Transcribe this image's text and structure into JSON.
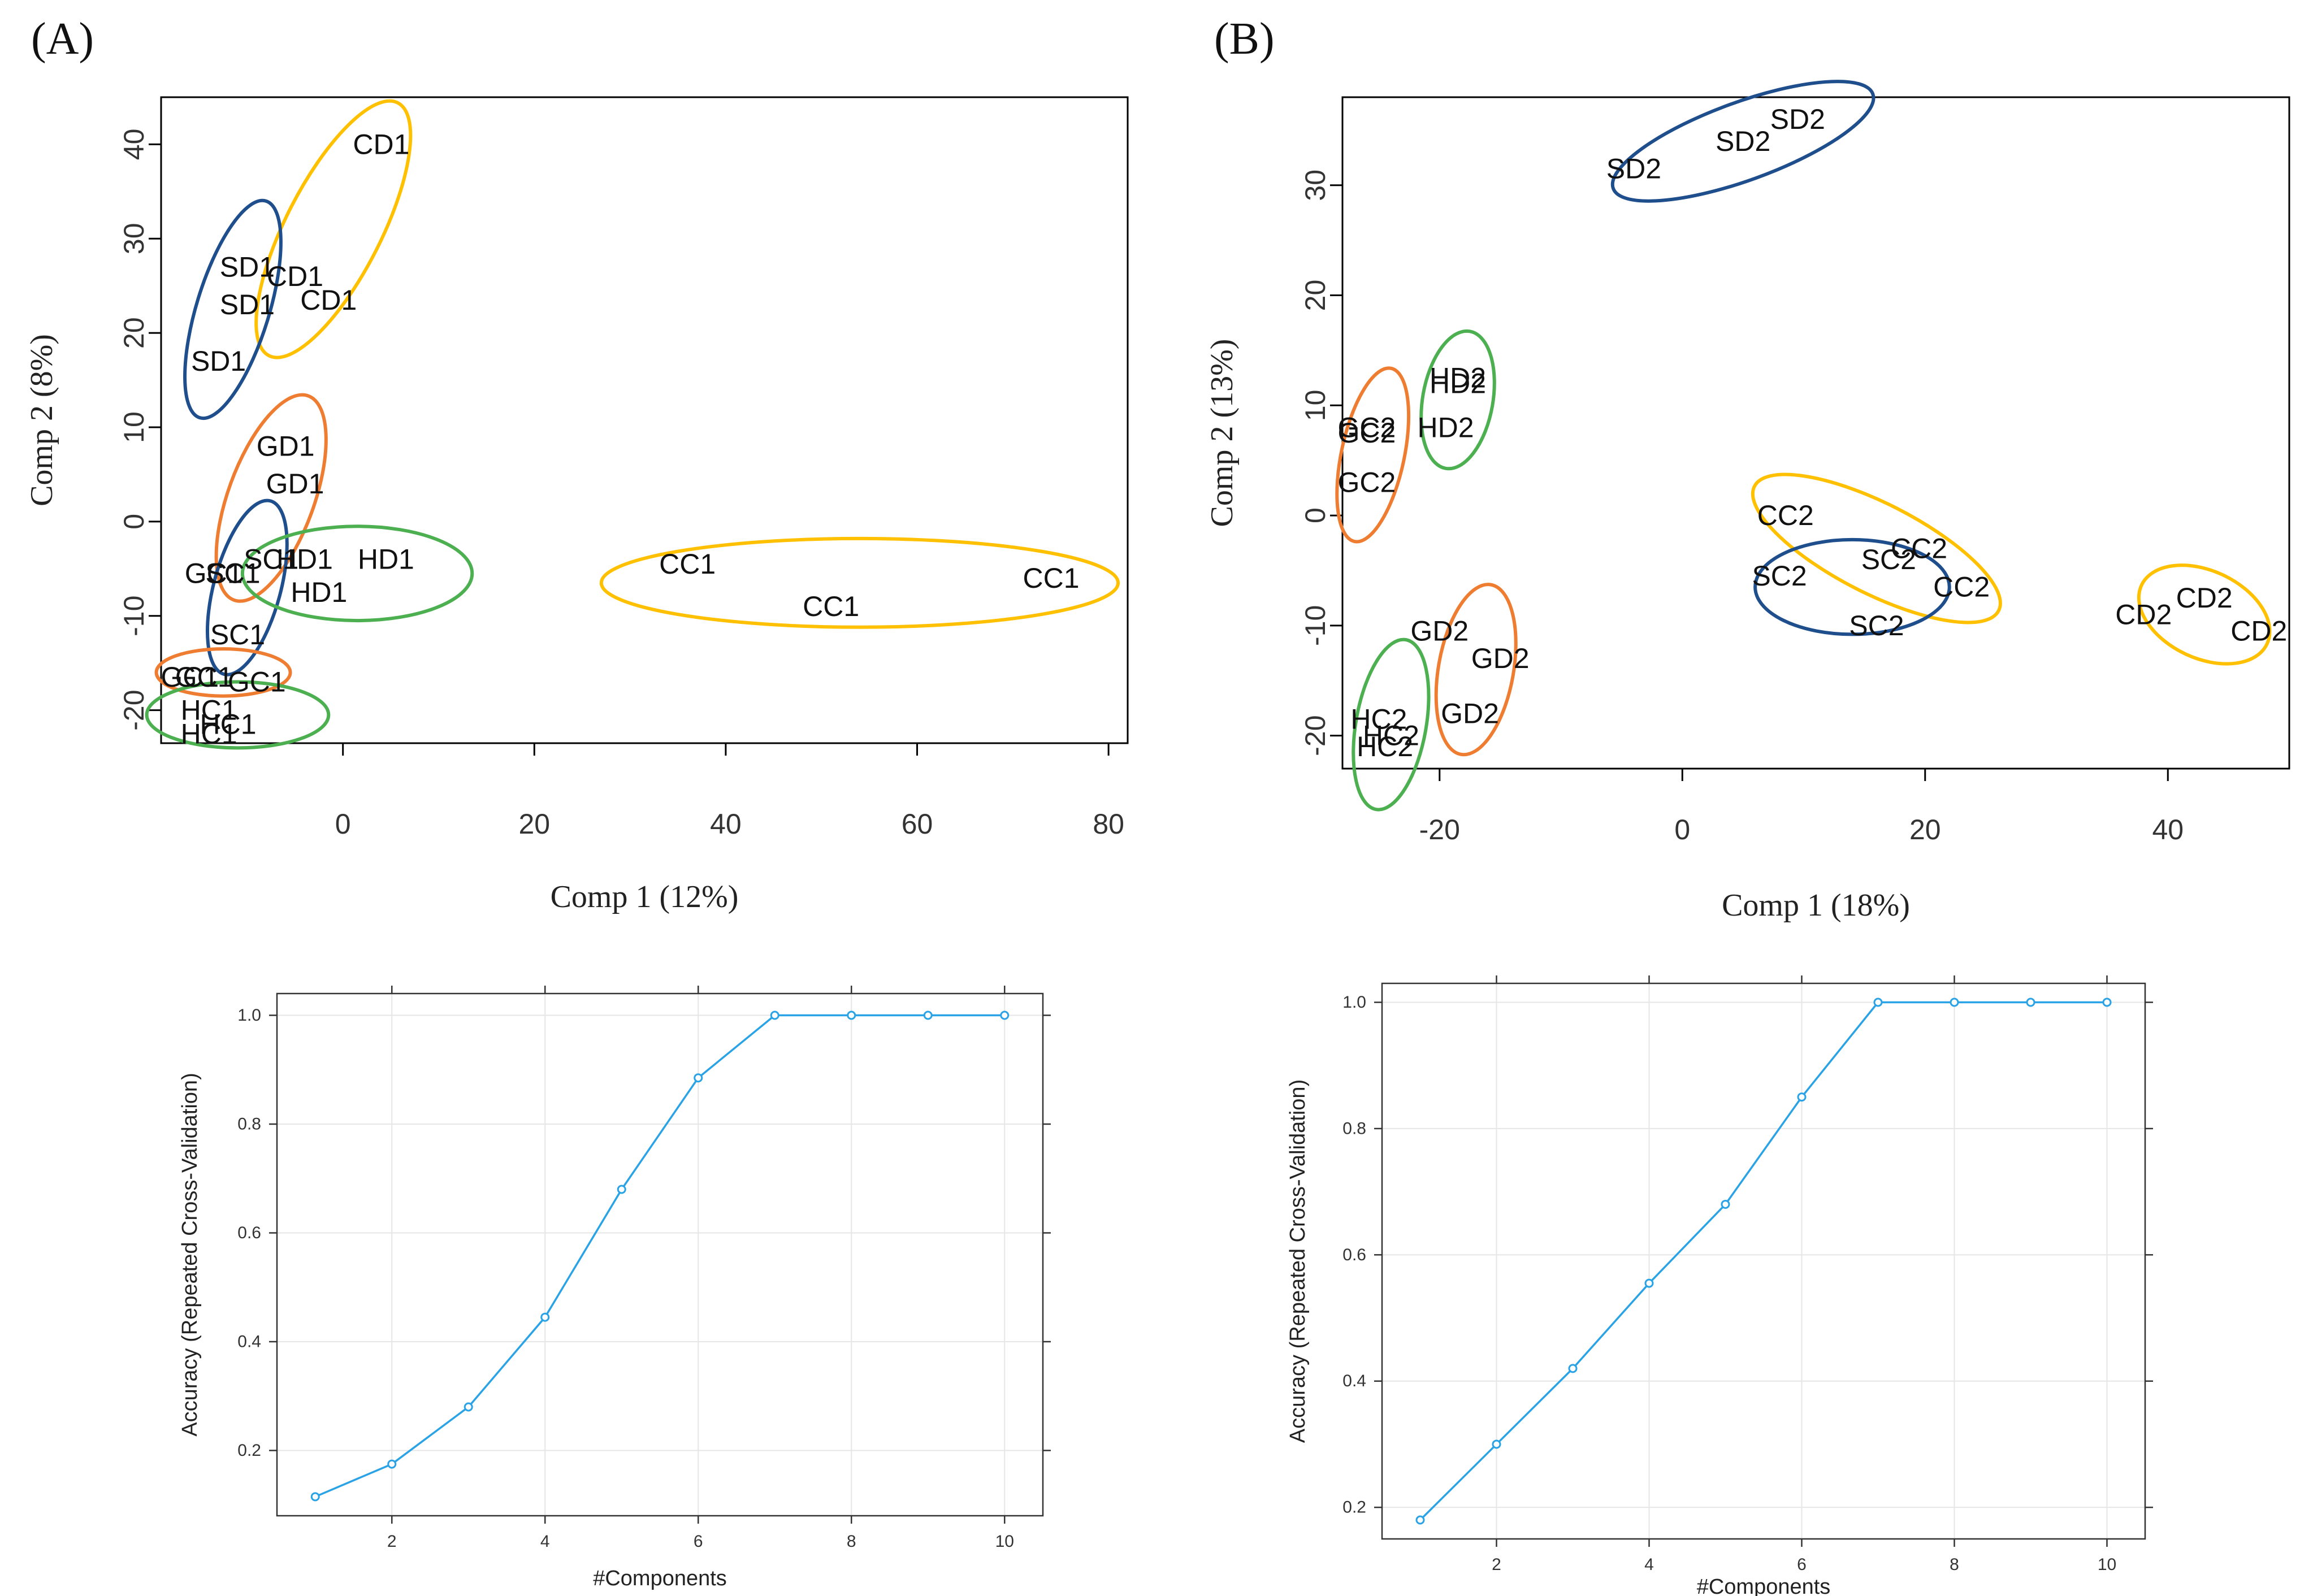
{
  "figure": {
    "panel_labels": [
      "(A)",
      "(B)"
    ]
  },
  "colors": {
    "blue": "#1f4e8c",
    "orange": "#ef7d31",
    "green": "#4caf50",
    "yellow": "#ffc000",
    "line": "#29a3e6",
    "frame": "#000000",
    "grid": "#e6e6e6"
  },
  "chart_data": [
    {
      "id": "A-scores",
      "type": "scatter",
      "title": "",
      "xlabel": "Comp 1 (12%)",
      "ylabel": "Comp 2 (8%)",
      "xlim": [
        -19,
        82
      ],
      "ylim": [
        -23.5,
        45
      ],
      "xticks": [
        0,
        20,
        40,
        60,
        80
      ],
      "yticks": [
        -20,
        -10,
        0,
        10,
        20,
        30,
        40
      ],
      "grid": false,
      "points": [
        {
          "label": "CD1",
          "x": 4,
          "y": 40
        },
        {
          "label": "CD1",
          "x": -5,
          "y": 26
        },
        {
          "label": "CD1",
          "x": -1.5,
          "y": 23.5
        },
        {
          "label": "SD1",
          "x": -10,
          "y": 27
        },
        {
          "label": "SD1",
          "x": -10,
          "y": 23
        },
        {
          "label": "SD1",
          "x": -13,
          "y": 17
        },
        {
          "label": "GD1",
          "x": -6,
          "y": 8
        },
        {
          "label": "GD1",
          "x": -5,
          "y": 4
        },
        {
          "label": "SC1",
          "x": -7.5,
          "y": -4
        },
        {
          "label": "HD1",
          "x": -4,
          "y": -4
        },
        {
          "label": "HD1",
          "x": 4.5,
          "y": -4
        },
        {
          "label": "HD1",
          "x": -2.5,
          "y": -7.5
        },
        {
          "label": "GC1",
          "x": -13.5,
          "y": -5.5
        },
        {
          "label": "SC1",
          "x": -11.5,
          "y": -5.5
        },
        {
          "label": "SC1",
          "x": -11,
          "y": -12
        },
        {
          "label": "CC1",
          "x": 36,
          "y": -4.5
        },
        {
          "label": "CC1",
          "x": 51,
          "y": -9
        },
        {
          "label": "CC1",
          "x": 74,
          "y": -6
        },
        {
          "label": "GC1",
          "x": -16,
          "y": -16.5
        },
        {
          "label": "GC1",
          "x": -14.5,
          "y": -16.5
        },
        {
          "label": "GC1",
          "x": -9,
          "y": -17
        },
        {
          "label": "HC1",
          "x": -14,
          "y": -20
        },
        {
          "label": "HC1",
          "x": -12,
          "y": -21.5
        },
        {
          "label": "HC1",
          "x": -14,
          "y": -22.5
        }
      ],
      "groups": [
        {
          "name": "CD1",
          "color": "yellow",
          "cx": -1,
          "cy": 31,
          "rx": 15,
          "ry": 5,
          "angle": -63
        },
        {
          "name": "SD1",
          "color": "blue",
          "cx": -11.5,
          "cy": 22.5,
          "rx": 12,
          "ry": 3.8,
          "angle": -73
        },
        {
          "name": "GD1",
          "color": "orange",
          "cx": -7.5,
          "cy": 2.5,
          "rx": 11.5,
          "ry": 4.5,
          "angle": -70
        },
        {
          "name": "SC1",
          "color": "blue",
          "cx": -10,
          "cy": -7,
          "rx": 9.5,
          "ry": 3.5,
          "angle": -75
        },
        {
          "name": "HD1",
          "color": "green",
          "cx": 1.5,
          "cy": -5.5,
          "rx": 12,
          "ry": 5
        },
        {
          "name": "CC1",
          "color": "yellow",
          "cx": 54,
          "cy": -6.5,
          "rx": 27,
          "ry": 4.7
        },
        {
          "name": "GC1",
          "color": "orange",
          "cx": -12.5,
          "cy": -16,
          "rx": 7,
          "ry": 2.5
        },
        {
          "name": "HC1",
          "color": "green",
          "cx": -11,
          "cy": -20.5,
          "rx": 9.5,
          "ry": 3.5
        }
      ]
    },
    {
      "id": "B-scores",
      "type": "scatter",
      "title": "",
      "xlabel": "Comp 1 (18%)",
      "ylabel": "Comp 2 (13%)",
      "xlim": [
        -28,
        50
      ],
      "ylim": [
        -23,
        38
      ],
      "xticks": [
        -20,
        0,
        20,
        40
      ],
      "yticks": [
        -20,
        -10,
        0,
        10,
        20,
        30
      ],
      "grid": false,
      "points": [
        {
          "label": "SD2",
          "x": 9.5,
          "y": 36
        },
        {
          "label": "SD2",
          "x": 5,
          "y": 34
        },
        {
          "label": "SD2",
          "x": -4,
          "y": 31.5
        },
        {
          "label": "HD2",
          "x": -18.5,
          "y": 12.5
        },
        {
          "label": "HD2",
          "x": -18.5,
          "y": 12
        },
        {
          "label": "HD2",
          "x": -19.5,
          "y": 8
        },
        {
          "label": "GC2",
          "x": -26,
          "y": 8
        },
        {
          "label": "GC2",
          "x": -26,
          "y": 7.5
        },
        {
          "label": "GC2",
          "x": -26,
          "y": 3
        },
        {
          "label": "CC2",
          "x": 8.5,
          "y": 0
        },
        {
          "label": "SC2",
          "x": 17,
          "y": -4
        },
        {
          "label": "CC2",
          "x": 19.5,
          "y": -3
        },
        {
          "label": "SC2",
          "x": 8,
          "y": -5.5
        },
        {
          "label": "CC2",
          "x": 23,
          "y": -6.5
        },
        {
          "label": "SC2",
          "x": 16,
          "y": -10
        },
        {
          "label": "GD2",
          "x": -20,
          "y": -10.5
        },
        {
          "label": "GD2",
          "x": -15,
          "y": -13
        },
        {
          "label": "GD2",
          "x": -17.5,
          "y": -18
        },
        {
          "label": "HC2",
          "x": -25,
          "y": -18.5
        },
        {
          "label": "HC2",
          "x": -24,
          "y": -20
        },
        {
          "label": "HC2",
          "x": -24.5,
          "y": -21
        },
        {
          "label": "CD2",
          "x": 43,
          "y": -7.5
        },
        {
          "label": "CD2",
          "x": 38,
          "y": -9
        },
        {
          "label": "CD2",
          "x": 47.5,
          "y": -10.5
        }
      ],
      "groups": [
        {
          "name": "SD2",
          "color": "blue",
          "cx": 5,
          "cy": 34,
          "rx": 11.5,
          "ry": 3.5,
          "angle": -20
        },
        {
          "name": "HD2",
          "color": "green",
          "cx": -18.5,
          "cy": 10.5,
          "rx": 6.3,
          "ry": 2.9,
          "angle": -80
        },
        {
          "name": "GC2",
          "color": "orange",
          "cx": -25.5,
          "cy": 5.5,
          "rx": 8,
          "ry": 2.6,
          "angle": -78
        },
        {
          "name": "CC2",
          "color": "yellow",
          "cx": 16,
          "cy": -3,
          "rx": 11.5,
          "ry": 4,
          "angle": 27
        },
        {
          "name": "SC2",
          "color": "blue",
          "cx": 14,
          "cy": -6.5,
          "rx": 8,
          "ry": 4.3
        },
        {
          "name": "GD2",
          "color": "orange",
          "cx": -17,
          "cy": -14,
          "rx": 7.8,
          "ry": 3.1,
          "angle": -80
        },
        {
          "name": "HC2",
          "color": "green",
          "cx": -24,
          "cy": -19,
          "rx": 7.8,
          "ry": 2.9,
          "angle": -80
        },
        {
          "name": "CD2",
          "color": "yellow",
          "cx": 43,
          "cy": -9,
          "rx": 5.8,
          "ry": 3.9,
          "angle": 25
        }
      ]
    },
    {
      "id": "A-accuracy",
      "type": "line",
      "title": "",
      "xlabel": "#Components",
      "ylabel": "Accuracy (Repeated Cross-Validation)",
      "xlim": [
        0.5,
        10.5
      ],
      "ylim": [
        0.08,
        1.04
      ],
      "xticks": [
        2,
        4,
        6,
        8,
        10
      ],
      "yticks": [
        0.2,
        0.4,
        0.6,
        0.8,
        1.0
      ],
      "ytick_labels": [
        "0.2",
        "0.4",
        "0.6",
        "0.8",
        "1.0"
      ],
      "grid": true,
      "x": [
        1,
        2,
        3,
        4,
        5,
        6,
        7,
        8,
        9,
        10
      ],
      "values": [
        0.115,
        0.175,
        0.28,
        0.445,
        0.68,
        0.885,
        1.0,
        1.0,
        1.0,
        1.0
      ]
    },
    {
      "id": "B-accuracy",
      "type": "line",
      "title": "",
      "xlabel": "#Components",
      "ylabel": "Accuracy (Repeated Cross-Validation)",
      "xlim": [
        0.5,
        10.5
      ],
      "ylim": [
        0.15,
        1.03
      ],
      "xticks": [
        2,
        4,
        6,
        8,
        10
      ],
      "yticks": [
        0.2,
        0.4,
        0.6,
        0.8,
        1.0
      ],
      "ytick_labels": [
        "0.2",
        "0.4",
        "0.6",
        "0.8",
        "1.0"
      ],
      "grid": true,
      "x": [
        1,
        2,
        3,
        4,
        5,
        6,
        7,
        8,
        9,
        10
      ],
      "values": [
        0.18,
        0.3,
        0.42,
        0.555,
        0.68,
        0.85,
        1.0,
        1.0,
        1.0,
        1.0
      ]
    }
  ]
}
